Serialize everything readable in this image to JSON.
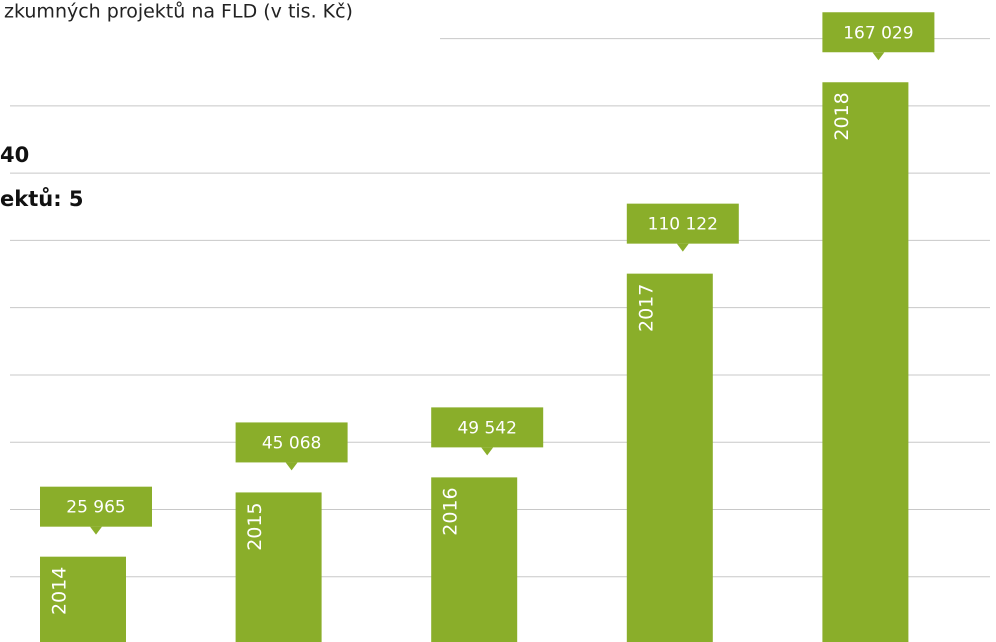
{
  "chart_data": {
    "type": "bar",
    "title": "zkumných projektů na FLD (v tis. Kč)",
    "annotations": [
      "40",
      "ektů: 5"
    ],
    "categories": [
      "2014",
      "2015",
      "2016",
      "2017",
      "2018"
    ],
    "values": [
      25965,
      45068,
      49542,
      110122,
      167029
    ],
    "value_labels": [
      "25 965",
      "45 068",
      "49 542",
      "110 122",
      "167 029"
    ],
    "color": "#8aae2a",
    "ylim": [
      0,
      190000
    ],
    "yticks": [
      20000,
      40000,
      60000,
      80000,
      100000,
      120000,
      140000,
      160000,
      180000
    ],
    "grid": true
  }
}
